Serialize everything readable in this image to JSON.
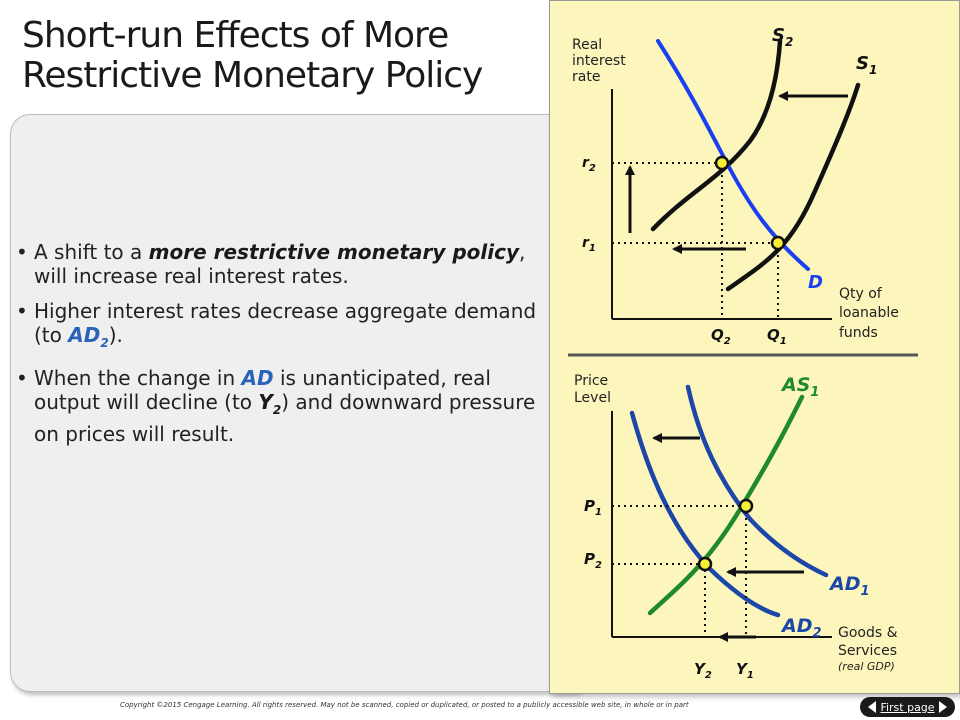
{
  "slide": {
    "title_line1": "Short-run Effects of More",
    "title_line2": "Restrictive Monetary Policy"
  },
  "bullets": [
    {
      "t1": "A shift to a ",
      "t2": "more restrictive monetary policy",
      "t3": ", will increase real interest rates."
    },
    {
      "t1": "Higher interest rates decrease aggregate demand (to ",
      "t2": "AD",
      "t2sub": "2",
      "t3": ")."
    },
    {
      "t1": "When the change in ",
      "t2": "AD",
      "t3": " is unanticipated, real output will decline (to ",
      "t4": "Y",
      "t4sub": "2",
      "t5": ") and downward pressure on prices will result."
    }
  ],
  "top_graph": {
    "y_axis_label": [
      "Real",
      "interest",
      "rate"
    ],
    "x_axis_label": [
      "Qty of",
      "loanable",
      "funds"
    ],
    "s2": "S",
    "s2_sub": "2",
    "s1": "S",
    "s1_sub": "1",
    "d": "D",
    "r2": "r",
    "r2_sub": "2",
    "r1": "r",
    "r1_sub": "1",
    "q2": "Q",
    "q2_sub": "2",
    "q1": "Q",
    "q1_sub": "1"
  },
  "bottom_graph": {
    "y_axis_label": [
      "Price",
      "Level"
    ],
    "x_axis_label": [
      "Goods &",
      "Services"
    ],
    "x_axis_note": "(real GDP)",
    "as1": "AS",
    "as1_sub": "1",
    "ad1": "AD",
    "ad1_sub": "1",
    "ad2": "AD",
    "ad2_sub": "2",
    "p1": "P",
    "p1_sub": "1",
    "p2": "P",
    "p2_sub": "2",
    "y2": "Y",
    "y2_sub": "2",
    "y1": "Y",
    "y1_sub": "1"
  },
  "colors": {
    "panel_bg": "#fcf6bd",
    "demand_blue": "#1a3ff0",
    "ad_blue": "#1c47a8",
    "as_green": "#1f8a2a",
    "point_fill": "#f7ee3a"
  },
  "footer": {
    "copyright": "Copyright ©2015 Cengage Learning. All rights reserved. May not be scanned, copied or duplicated, or posted to a publicly accessible web site, in whole or in part",
    "first_page": "First page"
  }
}
